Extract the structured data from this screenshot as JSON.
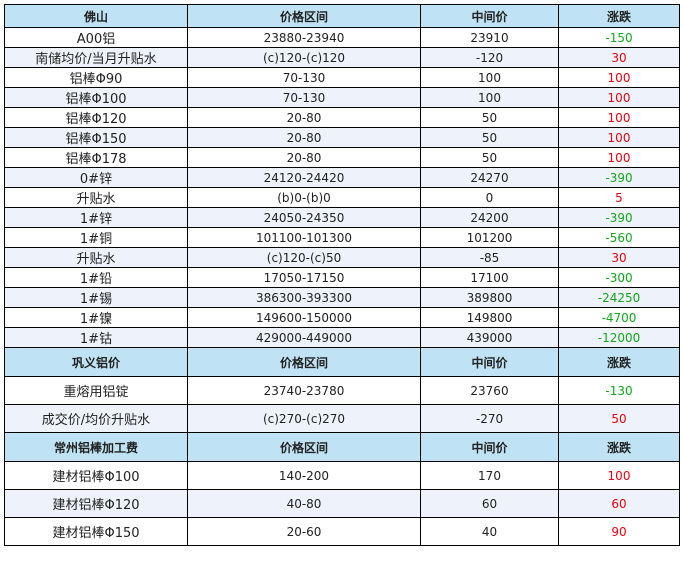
{
  "foshan": {
    "header": [
      "佛山",
      "价格区间",
      "中间价",
      "涨跌"
    ],
    "rows": [
      {
        "name": "A00铝",
        "range": "23880-23940",
        "mid": "23910",
        "change": "-150",
        "dir": "down"
      },
      {
        "name": "南储均价/当月升贴水",
        "range": "(c)120-(c)120",
        "mid": "-120",
        "change": "30",
        "dir": "up"
      },
      {
        "name": "铝棒Φ90",
        "range": "70-130",
        "mid": "100",
        "change": "100",
        "dir": "up"
      },
      {
        "name": "铝棒Φ100",
        "range": "70-130",
        "mid": "100",
        "change": "100",
        "dir": "up"
      },
      {
        "name": "铝棒Φ120",
        "range": "20-80",
        "mid": "50",
        "change": "100",
        "dir": "up"
      },
      {
        "name": "铝棒Φ150",
        "range": "20-80",
        "mid": "50",
        "change": "100",
        "dir": "up"
      },
      {
        "name": "铝棒Φ178",
        "range": "20-80",
        "mid": "50",
        "change": "100",
        "dir": "up"
      },
      {
        "name": "0#锌",
        "range": "24120-24420",
        "mid": "24270",
        "change": "-390",
        "dir": "down"
      },
      {
        "name": "升贴水",
        "range": "(b)0-(b)0",
        "mid": "0",
        "change": "5",
        "dir": "up"
      },
      {
        "name": "1#锌",
        "range": "24050-24350",
        "mid": "24200",
        "change": "-390",
        "dir": "down"
      },
      {
        "name": "1#铜",
        "range": "101100-101300",
        "mid": "101200",
        "change": "-560",
        "dir": "down"
      },
      {
        "name": "升贴水",
        "range": "(c)120-(c)50",
        "mid": "-85",
        "change": "30",
        "dir": "up"
      },
      {
        "name": "1#铅",
        "range": "17050-17150",
        "mid": "17100",
        "change": "-300",
        "dir": "down"
      },
      {
        "name": "1#锡",
        "range": "386300-393300",
        "mid": "389800",
        "change": "-24250",
        "dir": "down"
      },
      {
        "name": "1#镍",
        "range": "149600-150000",
        "mid": "149800",
        "change": "-4700",
        "dir": "down"
      },
      {
        "name": "1#钴",
        "range": "429000-449000",
        "mid": "439000",
        "change": "-12000",
        "dir": "down"
      }
    ]
  },
  "gongyi": {
    "header": [
      "巩义铝价",
      "价格区间",
      "中间价",
      "涨跌"
    ],
    "rows": [
      {
        "name": "重熔用铝锭",
        "range": "23740-23780",
        "mid": "23760",
        "change": "-130",
        "dir": "down"
      },
      {
        "name": "成交价/均价升贴水",
        "range": "(c)270-(c)270",
        "mid": "-270",
        "change": "50",
        "dir": "up"
      }
    ]
  },
  "changzhou": {
    "header": [
      "常州铝棒加工费",
      "价格区间",
      "中间价",
      "涨跌"
    ],
    "rows": [
      {
        "name": "建材铝棒Φ100",
        "range": "140-200",
        "mid": "170",
        "change": "100",
        "dir": "up"
      },
      {
        "name": "建材铝棒Φ120",
        "range": "40-80",
        "mid": "60",
        "change": "60",
        "dir": "up"
      },
      {
        "name": "建材铝棒Φ150",
        "range": "20-60",
        "mid": "40",
        "change": "90",
        "dir": "up"
      }
    ]
  }
}
